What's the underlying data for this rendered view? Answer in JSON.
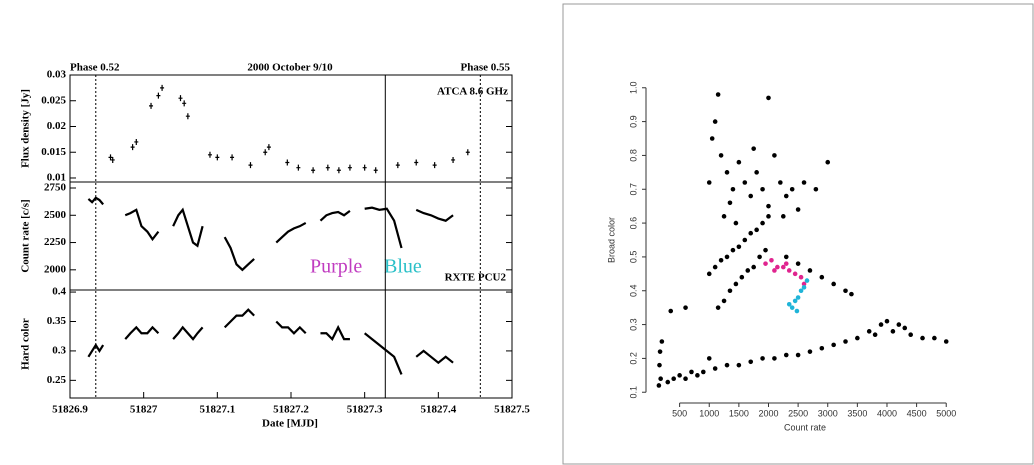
{
  "chart_data": [
    {
      "type": "scatter",
      "title": "2000 October 9/10",
      "ylabel": "Flux density [Jy]",
      "annotations": [
        "Phase 0.52",
        "Phase 0.55",
        "ATCA 8.6 GHz"
      ],
      "vlines": [
        51826.935,
        51827.328,
        51827.457
      ],
      "vline_styles": [
        "dotted",
        "solid",
        "dotted"
      ],
      "color": "#000000",
      "x": [
        51826.955,
        51826.958,
        51826.985,
        51826.99,
        51827.01,
        51827.02,
        51827.025,
        51827.05,
        51827.055,
        51827.06,
        51827.09,
        51827.1,
        51827.12,
        51827.145,
        51827.165,
        51827.17,
        51827.195,
        51827.21,
        51827.23,
        51827.25,
        51827.265,
        51827.28,
        51827.3,
        51827.315,
        51827.345,
        51827.37,
        51827.395,
        51827.42,
        51827.44
      ],
      "values": [
        0.014,
        0.0135,
        0.016,
        0.017,
        0.024,
        0.026,
        0.0275,
        0.0255,
        0.0245,
        0.022,
        0.0145,
        0.014,
        0.014,
        0.0125,
        0.015,
        0.016,
        0.013,
        0.012,
        0.0115,
        0.012,
        0.0115,
        0.012,
        0.012,
        0.0115,
        0.0125,
        0.013,
        0.0125,
        0.0135,
        0.015
      ],
      "xlim": [
        51826.9,
        51827.5
      ],
      "ylim": [
        0.00922,
        0.03
      ],
      "yticks": [
        0.01,
        0.015,
        0.02,
        0.025,
        0.03
      ]
    },
    {
      "type": "line",
      "ylabel": "Count rate [c/s]",
      "annotations": [
        "Purple",
        "Blue",
        "RXTE PCU2"
      ],
      "color": "#000000",
      "x": [
        51826.925,
        51826.93,
        51826.935,
        51826.94,
        51826.945,
        51826.96,
        51826.975,
        51826.982,
        51826.99,
        51826.997,
        51827.005,
        51827.012,
        51827.02,
        51827.03,
        51827.04,
        51827.047,
        51827.053,
        51827.06,
        51827.067,
        51827.073,
        51827.08,
        51827.095,
        51827.11,
        51827.118,
        51827.126,
        51827.134,
        51827.142,
        51827.15,
        51827.165,
        51827.18,
        51827.188,
        51827.196,
        51827.204,
        51827.212,
        51827.22,
        51827.23,
        51827.24,
        51827.248,
        51827.256,
        51827.264,
        51827.272,
        51827.28,
        51827.29,
        51827.3,
        51827.31,
        51827.32,
        51827.33,
        51827.34,
        51827.35,
        51827.36,
        51827.37,
        51827.38,
        51827.39,
        51827.4,
        51827.41,
        51827.42
      ],
      "values": [
        2650,
        2620,
        2660,
        2640,
        2600,
        null,
        2500,
        2520,
        2550,
        2400,
        2350,
        2280,
        2350,
        null,
        2400,
        2500,
        2550,
        2400,
        2250,
        2220,
        2400,
        null,
        2300,
        2200,
        2050,
        2000,
        2050,
        2100,
        null,
        2250,
        2300,
        2350,
        2380,
        2400,
        2430,
        null,
        2450,
        2500,
        2520,
        2530,
        2500,
        2540,
        null,
        2560,
        2570,
        2550,
        2560,
        2450,
        2200,
        null,
        2550,
        2520,
        2500,
        2470,
        2450,
        2500
      ],
      "xlim": [
        51826.9,
        51827.5
      ],
      "ylim": [
        1815,
        2805
      ],
      "yticks": [
        2000,
        2250,
        2500,
        2750
      ]
    },
    {
      "type": "line",
      "ylabel": "Hard color",
      "xlabel": "Date [MJD]",
      "color": "#000000",
      "x": [
        51826.925,
        51826.93,
        51826.935,
        51826.94,
        51826.945,
        51826.96,
        51826.975,
        51826.982,
        51826.99,
        51826.997,
        51827.005,
        51827.012,
        51827.02,
        51827.03,
        51827.04,
        51827.047,
        51827.053,
        51827.06,
        51827.067,
        51827.073,
        51827.08,
        51827.095,
        51827.11,
        51827.118,
        51827.126,
        51827.134,
        51827.142,
        51827.15,
        51827.165,
        51827.18,
        51827.188,
        51827.196,
        51827.204,
        51827.212,
        51827.22,
        51827.23,
        51827.24,
        51827.248,
        51827.256,
        51827.264,
        51827.272,
        51827.28,
        51827.29,
        51827.3,
        51827.31,
        51827.32,
        51827.33,
        51827.34,
        51827.35,
        51827.36,
        51827.37,
        51827.38,
        51827.39,
        51827.4,
        51827.41,
        51827.42
      ],
      "values": [
        0.29,
        0.3,
        0.31,
        0.3,
        0.31,
        null,
        0.32,
        0.33,
        0.34,
        0.33,
        0.33,
        0.34,
        0.33,
        null,
        0.32,
        0.33,
        0.34,
        0.33,
        0.32,
        0.33,
        0.34,
        null,
        0.34,
        0.35,
        0.36,
        0.36,
        0.37,
        0.36,
        null,
        0.35,
        0.34,
        0.34,
        0.33,
        0.34,
        0.33,
        null,
        0.33,
        0.33,
        0.32,
        0.34,
        0.32,
        0.32,
        null,
        0.33,
        0.32,
        0.31,
        0.3,
        0.29,
        0.26,
        null,
        0.29,
        0.3,
        0.29,
        0.28,
        0.29,
        0.28
      ],
      "xlim": [
        51826.9,
        51827.5
      ],
      "xticks": [
        51826.9,
        51827,
        51827.1,
        51827.2,
        51827.3,
        51827.4,
        51827.5
      ],
      "ylim": [
        0.22,
        0.4035
      ],
      "yticks": [
        0.25,
        0.3,
        0.35,
        0.4
      ]
    },
    {
      "type": "scatter",
      "xlabel": "Count rate",
      "ylabel": "Broad color",
      "xlim": [
        0,
        5300
      ],
      "xticks": [
        500,
        1000,
        1500,
        2000,
        2500,
        3000,
        3500,
        4000,
        4500,
        5000
      ],
      "ylim": [
        0.08,
        1.02
      ],
      "yticks": [
        0.1,
        0.2,
        0.3,
        0.4,
        0.5,
        0.6,
        0.7,
        0.8,
        0.9,
        {
          "value": 1,
          "label": "1.0"
        }
      ],
      "series": [
        {
          "color": "#000000",
          "x": [
            150,
            160,
            170,
            180,
            200,
            300,
            400,
            500,
            600,
            700,
            800,
            900,
            1000,
            1100,
            1300,
            1500,
            1700,
            1900,
            2100,
            2300,
            2500,
            2700,
            2900,
            3100,
            3300,
            3500,
            3700,
            3900,
            4000,
            4200,
            4300,
            4400,
            4600,
            4800,
            5000,
            3800,
            4100,
            350,
            600,
            1150,
            1250,
            1350,
            1450,
            1550,
            1650,
            1750,
            1850,
            1950,
            1000,
            1100,
            1200,
            1300,
            1400,
            1500,
            1600,
            1700,
            1800,
            1900,
            2000,
            2300,
            2500,
            2700,
            2900,
            3100,
            3300,
            3400,
            1000,
            1050,
            1100,
            1150,
            1200,
            1300,
            1400,
            1500,
            1600,
            1700,
            1800,
            1900,
            2000,
            2000,
            2100,
            2200,
            2300,
            2400,
            2600,
            2800,
            3000,
            1250,
            1350,
            1450,
            1750,
            2250,
            2500
          ],
          "values": [
            0.12,
            0.18,
            0.22,
            0.14,
            0.25,
            0.13,
            0.14,
            0.15,
            0.14,
            0.16,
            0.15,
            0.16,
            0.2,
            0.17,
            0.18,
            0.18,
            0.19,
            0.2,
            0.2,
            0.21,
            0.21,
            0.22,
            0.23,
            0.24,
            0.25,
            0.26,
            0.28,
            0.3,
            0.31,
            0.3,
            0.29,
            0.27,
            0.26,
            0.26,
            0.25,
            0.27,
            0.28,
            0.34,
            0.35,
            0.35,
            0.37,
            0.4,
            0.42,
            0.44,
            0.46,
            0.47,
            0.5,
            0.52,
            0.45,
            0.47,
            0.49,
            0.5,
            0.52,
            0.53,
            0.55,
            0.57,
            0.58,
            0.6,
            0.62,
            0.5,
            0.48,
            0.46,
            0.44,
            0.42,
            0.4,
            0.39,
            0.72,
            0.85,
            0.9,
            0.98,
            0.8,
            0.75,
            0.7,
            0.78,
            0.72,
            0.68,
            0.75,
            0.7,
            0.97,
            0.65,
            0.8,
            0.72,
            0.68,
            0.7,
            0.72,
            0.7,
            0.78,
            0.62,
            0.66,
            0.6,
            0.82,
            0.62,
            0.64
          ]
        },
        {
          "color": "#e0248f",
          "x": [
            1950,
            2050,
            2150,
            2250,
            2350,
            2450,
            2550,
            2600,
            2100,
            2300
          ],
          "values": [
            0.48,
            0.49,
            0.47,
            0.47,
            0.46,
            0.45,
            0.44,
            0.42,
            0.46,
            0.48
          ]
        },
        {
          "color": "#1fb4d8",
          "x": [
            2400,
            2450,
            2500,
            2550,
            2600,
            2480,
            2650,
            2350
          ],
          "values": [
            0.35,
            0.37,
            0.38,
            0.4,
            0.41,
            0.34,
            0.43,
            0.36
          ]
        }
      ]
    }
  ]
}
